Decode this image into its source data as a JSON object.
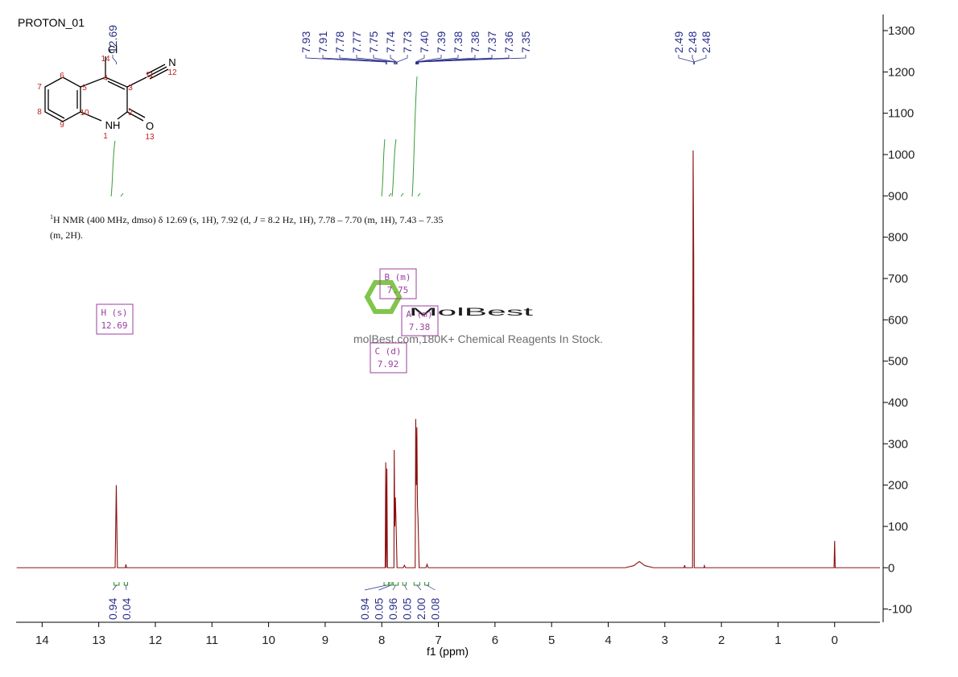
{
  "chart_data": {
    "type": "line",
    "title": "PROTON_01",
    "xlabel": "f1 (ppm)",
    "xlim": [
      14.46,
      -0.8
    ],
    "xticks": [
      14,
      13,
      12,
      11,
      10,
      9,
      8,
      7,
      6,
      5,
      4,
      3,
      2,
      1,
      0
    ],
    "ylim": [
      -132,
      1339
    ],
    "yticks": [
      -100,
      0,
      100,
      200,
      300,
      400,
      500,
      600,
      700,
      800,
      900,
      1000,
      1100,
      1200,
      1300
    ],
    "series": [
      {
        "name": "PROTON_01",
        "color": "#8b1010",
        "x": [
          14.45,
          12.71,
          12.69,
          12.67,
          12.53,
          12.52,
          12.51,
          7.94,
          7.93,
          7.92,
          7.91,
          7.9,
          7.785,
          7.78,
          7.77,
          7.76,
          7.75,
          7.74,
          7.73,
          7.62,
          7.6,
          7.58,
          7.41,
          7.4,
          7.39,
          7.38,
          7.37,
          7.36,
          7.35,
          7.34,
          7.22,
          7.2,
          7.18,
          3.7,
          3.55,
          3.45,
          3.35,
          3.2,
          2.66,
          2.65,
          2.64,
          2.51,
          2.5,
          2.49,
          2.48,
          2.31,
          2.3,
          2.29,
          0.01,
          0,
          -0.01,
          -0.8
        ],
        "values": [
          0,
          0,
          200,
          0,
          0,
          8,
          0,
          0,
          255,
          0,
          240,
          0,
          0,
          285,
          100,
          170,
          120,
          60,
          0,
          0,
          6,
          0,
          0,
          360,
          200,
          340,
          150,
          120,
          60,
          0,
          0,
          8,
          0,
          0,
          5,
          15,
          5,
          0,
          0,
          6,
          0,
          0,
          1010,
          760,
          0,
          0,
          5,
          0,
          0,
          65,
          0,
          0
        ]
      }
    ],
    "peaks": [
      12.69,
      7.93,
      7.91,
      7.78,
      7.77,
      7.75,
      7.74,
      7.73,
      {
        "value": 7.4,
        "label": "7.40"
      },
      7.39,
      7.38,
      7.38,
      7.37,
      7.36,
      7.35,
      2.49,
      2.48,
      2.48
    ],
    "integrals": [
      {
        "from": 12.73,
        "to": 12.64,
        "value": 0.94
      },
      {
        "from": 12.55,
        "to": 12.49,
        "value": 0.04
      },
      {
        "from": 7.96,
        "to": 7.88,
        "value": 0.94
      },
      {
        "from": 7.86,
        "to": 7.82,
        "value": 0.05
      },
      {
        "from": 7.8,
        "to": 7.71,
        "value": 0.96
      },
      {
        "from": 7.63,
        "to": 7.57,
        "value": 0.05
      },
      {
        "from": 7.43,
        "to": 7.33,
        "value": {
          "value": 2,
          "label": "2.00"
        }
      },
      {
        "from": 7.24,
        "to": 7.17,
        "value": 0.08
      }
    ],
    "multiplets": [
      {
        "name": "H (s)",
        "shift": "12.69"
      },
      {
        "name": "B (m)",
        "shift": "7.75"
      },
      {
        "name": "A (m)",
        "shift": "7.38"
      },
      {
        "name": "C (d)",
        "shift": "7.92"
      }
    ],
    "description": {
      "sup": "1",
      "text1": "H NMR (400 MHz, dmso) δ 12.69 (s, 1H), 7.92 (d, ",
      "italic": "J",
      "text2": " = 8.2 Hz, 1H), 7.78 – 7.70 (m, 1H), 7.43 – 7.35",
      "line2": "(m, 2H)."
    },
    "watermark": {
      "brand": "MolBest",
      "tagline": "molBest.com,180K+ Chemical Reagents In Stock."
    },
    "structure": {
      "atoms": [
        "Cl",
        "N",
        "NH",
        "O"
      ],
      "numbers": [
        "14",
        "4",
        "11",
        "12",
        "3",
        "6",
        "5",
        "7",
        "8",
        "10",
        "2",
        "9",
        "1",
        "13"
      ]
    }
  }
}
